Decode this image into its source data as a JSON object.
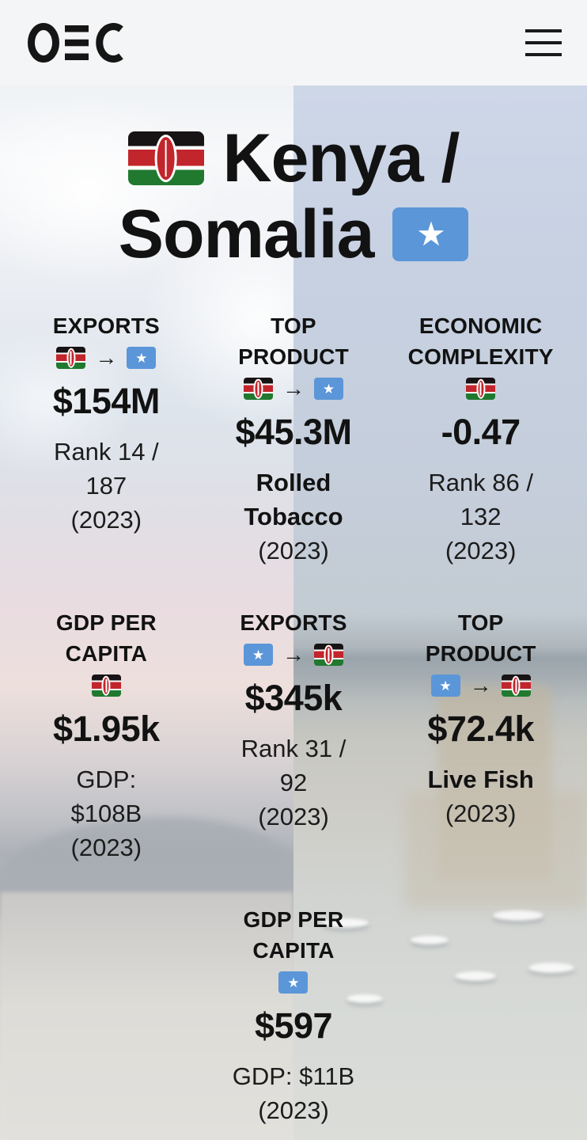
{
  "header": {
    "logo": "OEC",
    "menu_label": "menu"
  },
  "title": {
    "line1": "Kenya /",
    "line2": "Somalia",
    "flag_left": "kenya",
    "flag_right": "somalia"
  },
  "icons": {
    "arrow": "→",
    "star": "★"
  },
  "colors": {
    "text": "#141414",
    "header_bg": "#f4f5f6",
    "kenya_black": "#181314",
    "kenya_red": "#c2252b",
    "kenya_green": "#20792f",
    "kenya_white": "#ffffff",
    "somalia_blue": "#5b96d8",
    "star_white": "#ffffff",
    "sky_left": "#eef0f3",
    "sky_right": "#c8d2e3"
  },
  "stats": [
    {
      "label": "EXPORTS",
      "label_lines": [
        "EXPORTS"
      ],
      "flags": [
        "kenya",
        "somalia"
      ],
      "value": "$154M",
      "product_lines": [],
      "detail_lines": [
        "Rank 14 /",
        "187",
        "(2023)"
      ]
    },
    {
      "label": "TOP PRODUCT",
      "label_lines": [
        "TOP",
        "PRODUCT"
      ],
      "flags": [
        "kenya",
        "somalia"
      ],
      "value": "$45.3M",
      "product_lines": [
        "Rolled",
        "Tobacco"
      ],
      "detail_lines": [
        "(2023)"
      ]
    },
    {
      "label": "ECONOMIC COMPLEXITY",
      "label_lines": [
        "ECONOMIC",
        "COMPLEXITY"
      ],
      "flags": [
        "kenya"
      ],
      "value": "-0.47",
      "product_lines": [],
      "detail_lines": [
        "Rank 86 /",
        "132",
        "(2023)"
      ]
    },
    {
      "label": "GDP PER CAPITA",
      "label_lines": [
        "GDP PER",
        "CAPITA"
      ],
      "flags": [
        "kenya"
      ],
      "value": "$1.95k",
      "product_lines": [],
      "detail_lines": [
        "GDP:",
        "$108B",
        "(2023)"
      ]
    },
    {
      "label": "EXPORTS",
      "label_lines": [
        "EXPORTS"
      ],
      "flags": [
        "somalia",
        "kenya"
      ],
      "value": "$345k",
      "product_lines": [],
      "detail_lines": [
        "Rank 31 /",
        "92",
        "(2023)"
      ]
    },
    {
      "label": "TOP PRODUCT",
      "label_lines": [
        "TOP",
        "PRODUCT"
      ],
      "flags": [
        "somalia",
        "kenya"
      ],
      "value": "$72.4k",
      "product_lines": [
        "Live Fish"
      ],
      "detail_lines": [
        "(2023)"
      ]
    },
    {
      "label": "GDP PER CAPITA",
      "label_lines": [
        "GDP PER",
        "CAPITA"
      ],
      "flags": [
        "somalia"
      ],
      "value": "$597",
      "product_lines": [],
      "detail_lines": [
        "GDP: $11B",
        "(2023)"
      ]
    }
  ]
}
